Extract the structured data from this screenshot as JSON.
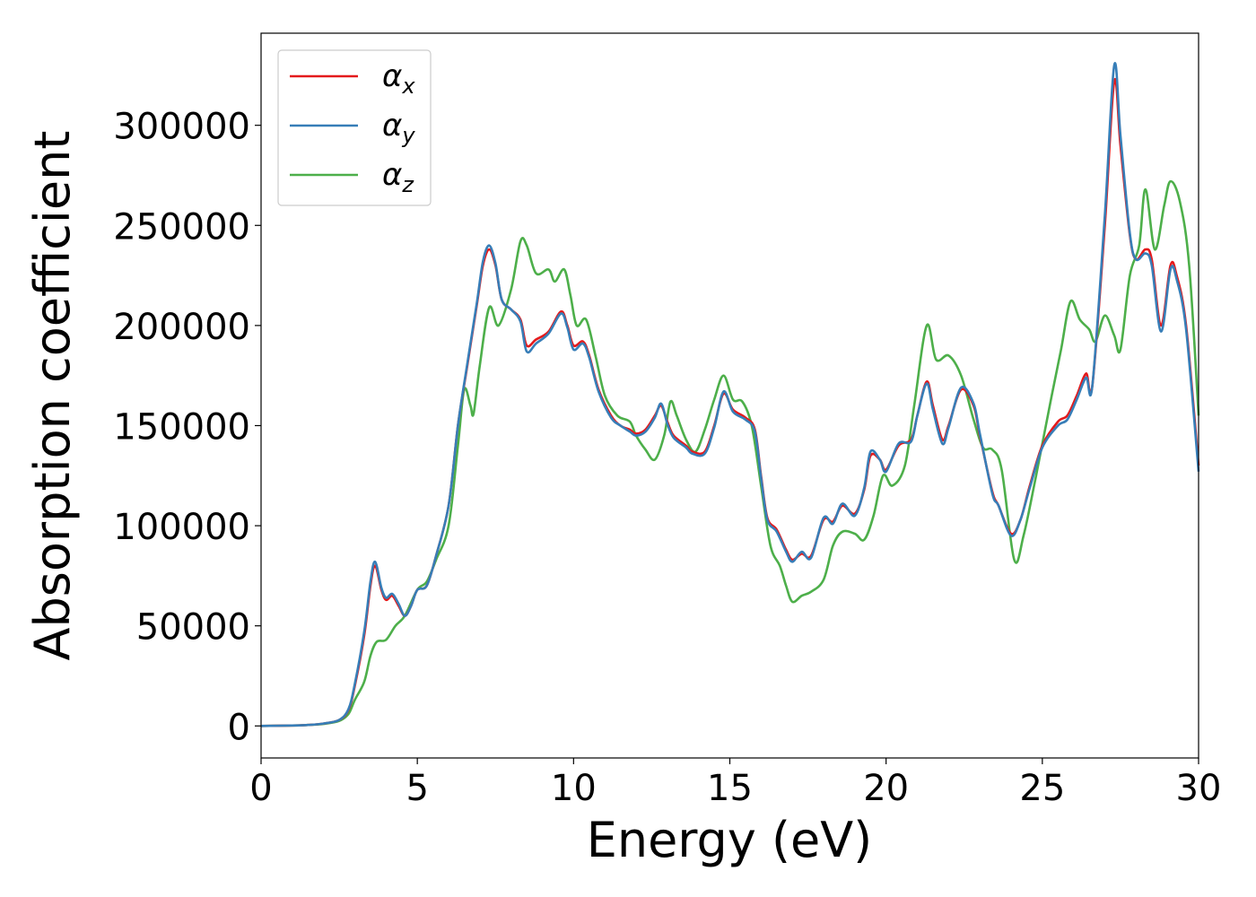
{
  "chart_data": {
    "type": "line",
    "xlabel": "Energy (eV)",
    "ylabel": "Absorption coefficient",
    "xlim": [
      0,
      30
    ],
    "ylim": [
      -16000,
      346000
    ],
    "xticks": [
      "0",
      "5",
      "10",
      "15",
      "20",
      "25",
      "30"
    ],
    "yticks": [
      "0",
      "50000",
      "100000",
      "150000",
      "200000",
      "250000",
      "300000"
    ],
    "grid": false,
    "legend_position": "upper-left",
    "series": [
      {
        "name": "αx",
        "legend_symbol": "α",
        "legend_sub": "x",
        "color": "#e41a1c",
        "points": [
          [
            0,
            0
          ],
          [
            1,
            200
          ],
          [
            1.5,
            500
          ],
          [
            2,
            1200
          ],
          [
            2.5,
            3000
          ],
          [
            2.8,
            8000
          ],
          [
            3,
            20000
          ],
          [
            3.3,
            45000
          ],
          [
            3.5,
            70000
          ],
          [
            3.65,
            80000
          ],
          [
            3.85,
            68000
          ],
          [
            4,
            63000
          ],
          [
            4.2,
            65000
          ],
          [
            4.4,
            60000
          ],
          [
            4.6,
            55000
          ],
          [
            4.8,
            60000
          ],
          [
            5,
            68000
          ],
          [
            5.3,
            70000
          ],
          [
            5.6,
            85000
          ],
          [
            6,
            110000
          ],
          [
            6.3,
            150000
          ],
          [
            6.6,
            180000
          ],
          [
            6.9,
            210000
          ],
          [
            7.1,
            230000
          ],
          [
            7.3,
            238000
          ],
          [
            7.5,
            230000
          ],
          [
            7.7,
            213000
          ],
          [
            8,
            208000
          ],
          [
            8.3,
            203000
          ],
          [
            8.5,
            190000
          ],
          [
            8.8,
            193000
          ],
          [
            9.2,
            197000
          ],
          [
            9.6,
            207000
          ],
          [
            9.8,
            200000
          ],
          [
            10,
            190000
          ],
          [
            10.3,
            192000
          ],
          [
            10.5,
            185000
          ],
          [
            10.8,
            168000
          ],
          [
            11.2,
            155000
          ],
          [
            11.5,
            150000
          ],
          [
            11.8,
            148000
          ],
          [
            12,
            146000
          ],
          [
            12.3,
            148000
          ],
          [
            12.6,
            155000
          ],
          [
            12.8,
            160000
          ],
          [
            13,
            152000
          ],
          [
            13.2,
            145000
          ],
          [
            13.6,
            140000
          ],
          [
            13.8,
            137000
          ],
          [
            14.2,
            137000
          ],
          [
            14.5,
            150000
          ],
          [
            14.8,
            166000
          ],
          [
            15.1,
            158000
          ],
          [
            15.5,
            154000
          ],
          [
            15.8,
            148000
          ],
          [
            16,
            125000
          ],
          [
            16.2,
            104000
          ],
          [
            16.5,
            98000
          ],
          [
            16.8,
            88000
          ],
          [
            17,
            83000
          ],
          [
            17.3,
            86000
          ],
          [
            17.6,
            85000
          ],
          [
            18,
            103000
          ],
          [
            18.3,
            102000
          ],
          [
            18.6,
            110000
          ],
          [
            19,
            106000
          ],
          [
            19.3,
            118000
          ],
          [
            19.5,
            135000
          ],
          [
            19.8,
            133000
          ],
          [
            20,
            128000
          ],
          [
            20.4,
            140000
          ],
          [
            20.8,
            143000
          ],
          [
            21,
            155000
          ],
          [
            21.3,
            172000
          ],
          [
            21.5,
            160000
          ],
          [
            21.8,
            143000
          ],
          [
            22,
            150000
          ],
          [
            22.4,
            168000
          ],
          [
            22.8,
            160000
          ],
          [
            23,
            145000
          ],
          [
            23.4,
            117000
          ],
          [
            23.6,
            110000
          ],
          [
            24,
            96000
          ],
          [
            24.3,
            103000
          ],
          [
            24.6,
            120000
          ],
          [
            25,
            140000
          ],
          [
            25.5,
            152000
          ],
          [
            25.8,
            155000
          ],
          [
            26.1,
            165000
          ],
          [
            26.4,
            176000
          ],
          [
            26.6,
            170000
          ],
          [
            27,
            250000
          ],
          [
            27.3,
            322000
          ],
          [
            27.5,
            290000
          ],
          [
            27.8,
            245000
          ],
          [
            28,
            233000
          ],
          [
            28.3,
            238000
          ],
          [
            28.5,
            233000
          ],
          [
            28.8,
            200000
          ],
          [
            29.1,
            230000
          ],
          [
            29.3,
            225000
          ],
          [
            29.6,
            200000
          ],
          [
            30,
            130000
          ]
        ]
      },
      {
        "name": "αy",
        "legend_symbol": "α",
        "legend_sub": "y",
        "color": "#377eb8",
        "points": [
          [
            0,
            0
          ],
          [
            1,
            200
          ],
          [
            1.5,
            500
          ],
          [
            2,
            1200
          ],
          [
            2.5,
            3000
          ],
          [
            2.8,
            8500
          ],
          [
            3,
            21000
          ],
          [
            3.3,
            47000
          ],
          [
            3.5,
            72000
          ],
          [
            3.65,
            82000
          ],
          [
            3.85,
            69000
          ],
          [
            4,
            64000
          ],
          [
            4.2,
            66000
          ],
          [
            4.4,
            61000
          ],
          [
            4.6,
            55000
          ],
          [
            4.8,
            60000
          ],
          [
            5,
            68000
          ],
          [
            5.3,
            70000
          ],
          [
            5.6,
            85000
          ],
          [
            6,
            110000
          ],
          [
            6.3,
            150000
          ],
          [
            6.6,
            181000
          ],
          [
            6.9,
            211000
          ],
          [
            7.1,
            232000
          ],
          [
            7.3,
            240000
          ],
          [
            7.5,
            231000
          ],
          [
            7.7,
            213000
          ],
          [
            8,
            208000
          ],
          [
            8.3,
            202000
          ],
          [
            8.5,
            187000
          ],
          [
            8.8,
            191000
          ],
          [
            9.2,
            196000
          ],
          [
            9.6,
            206000
          ],
          [
            9.8,
            199000
          ],
          [
            10,
            188000
          ],
          [
            10.3,
            191000
          ],
          [
            10.5,
            184000
          ],
          [
            10.8,
            167000
          ],
          [
            11.2,
            154000
          ],
          [
            11.5,
            150000
          ],
          [
            11.8,
            147000
          ],
          [
            12,
            145000
          ],
          [
            12.3,
            147000
          ],
          [
            12.6,
            154000
          ],
          [
            12.8,
            161000
          ],
          [
            13,
            151000
          ],
          [
            13.2,
            144000
          ],
          [
            13.6,
            139000
          ],
          [
            13.8,
            136000
          ],
          [
            14.2,
            136000
          ],
          [
            14.5,
            149000
          ],
          [
            14.8,
            167000
          ],
          [
            15.1,
            157000
          ],
          [
            15.5,
            153000
          ],
          [
            15.8,
            147000
          ],
          [
            16,
            124000
          ],
          [
            16.2,
            103000
          ],
          [
            16.5,
            97000
          ],
          [
            16.8,
            87000
          ],
          [
            17,
            82000
          ],
          [
            17.3,
            87000
          ],
          [
            17.6,
            84000
          ],
          [
            18,
            104000
          ],
          [
            18.3,
            101000
          ],
          [
            18.6,
            111000
          ],
          [
            19,
            105000
          ],
          [
            19.3,
            119000
          ],
          [
            19.5,
            137000
          ],
          [
            19.8,
            133000
          ],
          [
            20,
            127000
          ],
          [
            20.4,
            141000
          ],
          [
            20.8,
            142000
          ],
          [
            21,
            155000
          ],
          [
            21.3,
            171000
          ],
          [
            21.5,
            158000
          ],
          [
            21.8,
            141000
          ],
          [
            22,
            149000
          ],
          [
            22.4,
            169000
          ],
          [
            22.8,
            161000
          ],
          [
            23,
            146000
          ],
          [
            23.4,
            116000
          ],
          [
            23.6,
            110000
          ],
          [
            24,
            95000
          ],
          [
            24.3,
            103000
          ],
          [
            24.6,
            119000
          ],
          [
            25,
            139000
          ],
          [
            25.5,
            150000
          ],
          [
            25.8,
            153000
          ],
          [
            26.1,
            163000
          ],
          [
            26.4,
            174000
          ],
          [
            26.6,
            170000
          ],
          [
            27,
            255000
          ],
          [
            27.3,
            330000
          ],
          [
            27.5,
            295000
          ],
          [
            27.8,
            246000
          ],
          [
            28,
            233000
          ],
          [
            28.3,
            236000
          ],
          [
            28.5,
            230000
          ],
          [
            28.8,
            197000
          ],
          [
            29.1,
            228000
          ],
          [
            29.3,
            223000
          ],
          [
            29.6,
            198000
          ],
          [
            30,
            127000
          ]
        ]
      },
      {
        "name": "αz",
        "legend_symbol": "α",
        "legend_sub": "z",
        "color": "#4daf4a",
        "points": [
          [
            0,
            0
          ],
          [
            1,
            200
          ],
          [
            1.5,
            500
          ],
          [
            2,
            1000
          ],
          [
            2.5,
            2500
          ],
          [
            2.8,
            6000
          ],
          [
            3,
            13000
          ],
          [
            3.3,
            22000
          ],
          [
            3.5,
            35000
          ],
          [
            3.7,
            42000
          ],
          [
            4,
            43000
          ],
          [
            4.3,
            50000
          ],
          [
            4.6,
            55000
          ],
          [
            5,
            68000
          ],
          [
            5.3,
            72000
          ],
          [
            5.6,
            83000
          ],
          [
            6,
            100000
          ],
          [
            6.3,
            140000
          ],
          [
            6.5,
            168000
          ],
          [
            6.7,
            160000
          ],
          [
            6.8,
            156000
          ],
          [
            7,
            180000
          ],
          [
            7.3,
            209000
          ],
          [
            7.6,
            200000
          ],
          [
            8,
            218000
          ],
          [
            8.3,
            242000
          ],
          [
            8.5,
            240000
          ],
          [
            8.8,
            226000
          ],
          [
            9.2,
            228000
          ],
          [
            9.4,
            222000
          ],
          [
            9.7,
            228000
          ],
          [
            9.9,
            215000
          ],
          [
            10.1,
            200000
          ],
          [
            10.4,
            203000
          ],
          [
            10.7,
            185000
          ],
          [
            11,
            165000
          ],
          [
            11.4,
            155000
          ],
          [
            11.8,
            152000
          ],
          [
            12,
            145000
          ],
          [
            12.3,
            138000
          ],
          [
            12.6,
            133000
          ],
          [
            12.9,
            145000
          ],
          [
            13.1,
            162000
          ],
          [
            13.3,
            155000
          ],
          [
            13.6,
            143000
          ],
          [
            13.9,
            137000
          ],
          [
            14.2,
            148000
          ],
          [
            14.5,
            163000
          ],
          [
            14.8,
            175000
          ],
          [
            15.1,
            163000
          ],
          [
            15.4,
            162000
          ],
          [
            15.7,
            150000
          ],
          [
            16,
            120000
          ],
          [
            16.3,
            90000
          ],
          [
            16.6,
            80000
          ],
          [
            16.8,
            70000
          ],
          [
            17,
            62000
          ],
          [
            17.3,
            65000
          ],
          [
            17.6,
            67000
          ],
          [
            18,
            73000
          ],
          [
            18.3,
            90000
          ],
          [
            18.6,
            97000
          ],
          [
            19,
            96000
          ],
          [
            19.3,
            93000
          ],
          [
            19.6,
            105000
          ],
          [
            19.9,
            125000
          ],
          [
            20.2,
            120000
          ],
          [
            20.6,
            130000
          ],
          [
            20.9,
            160000
          ],
          [
            21.3,
            200000
          ],
          [
            21.6,
            183000
          ],
          [
            22,
            185000
          ],
          [
            22.4,
            175000
          ],
          [
            22.8,
            153000
          ],
          [
            23.1,
            139000
          ],
          [
            23.4,
            138000
          ],
          [
            23.7,
            128000
          ],
          [
            24.1,
            83000
          ],
          [
            24.4,
            95000
          ],
          [
            24.8,
            125000
          ],
          [
            25.3,
            165000
          ],
          [
            25.6,
            188000
          ],
          [
            25.9,
            212000
          ],
          [
            26.2,
            203000
          ],
          [
            26.5,
            198000
          ],
          [
            26.7,
            192000
          ],
          [
            27,
            205000
          ],
          [
            27.3,
            195000
          ],
          [
            27.5,
            188000
          ],
          [
            27.8,
            225000
          ],
          [
            28.1,
            240000
          ],
          [
            28.3,
            268000
          ],
          [
            28.6,
            238000
          ],
          [
            28.9,
            260000
          ],
          [
            29.1,
            272000
          ],
          [
            29.4,
            262000
          ],
          [
            29.7,
            230000
          ],
          [
            30,
            155000
          ]
        ]
      }
    ]
  }
}
